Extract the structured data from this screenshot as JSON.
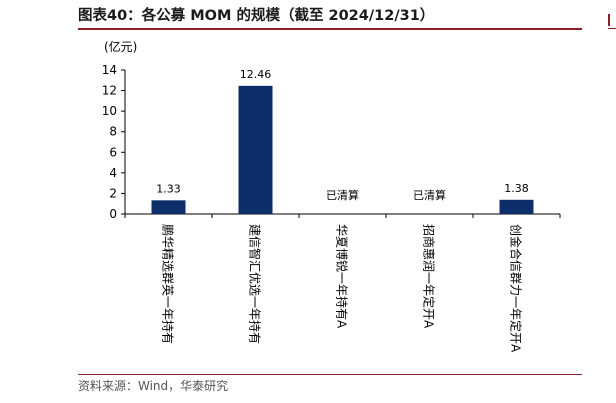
{
  "title": "图表40：各公募 MOM 的规模（截至 2024/12/31）",
  "source": "资料来源：Wind，华泰研究",
  "colors": {
    "bar": "#0d2e6b",
    "rule": "#8a1f2a"
  },
  "chart_data": {
    "type": "bar",
    "unit_label": "(亿元)",
    "categories": [
      "鹏华精选群英一年持有",
      "建信智汇优选一年持有",
      "华夏博锐一年持有A",
      "招商惠润一年定开A",
      "创金合信群力一年定开A"
    ],
    "values": [
      1.33,
      12.46,
      null,
      null,
      1.38
    ],
    "data_labels": [
      "1.33",
      "12.46",
      "已清算",
      "已清算",
      "1.38"
    ],
    "ylim": [
      0,
      14
    ],
    "yticks": [
      0,
      2,
      4,
      6,
      8,
      10,
      12,
      14
    ],
    "grid": false,
    "legend": "none"
  }
}
